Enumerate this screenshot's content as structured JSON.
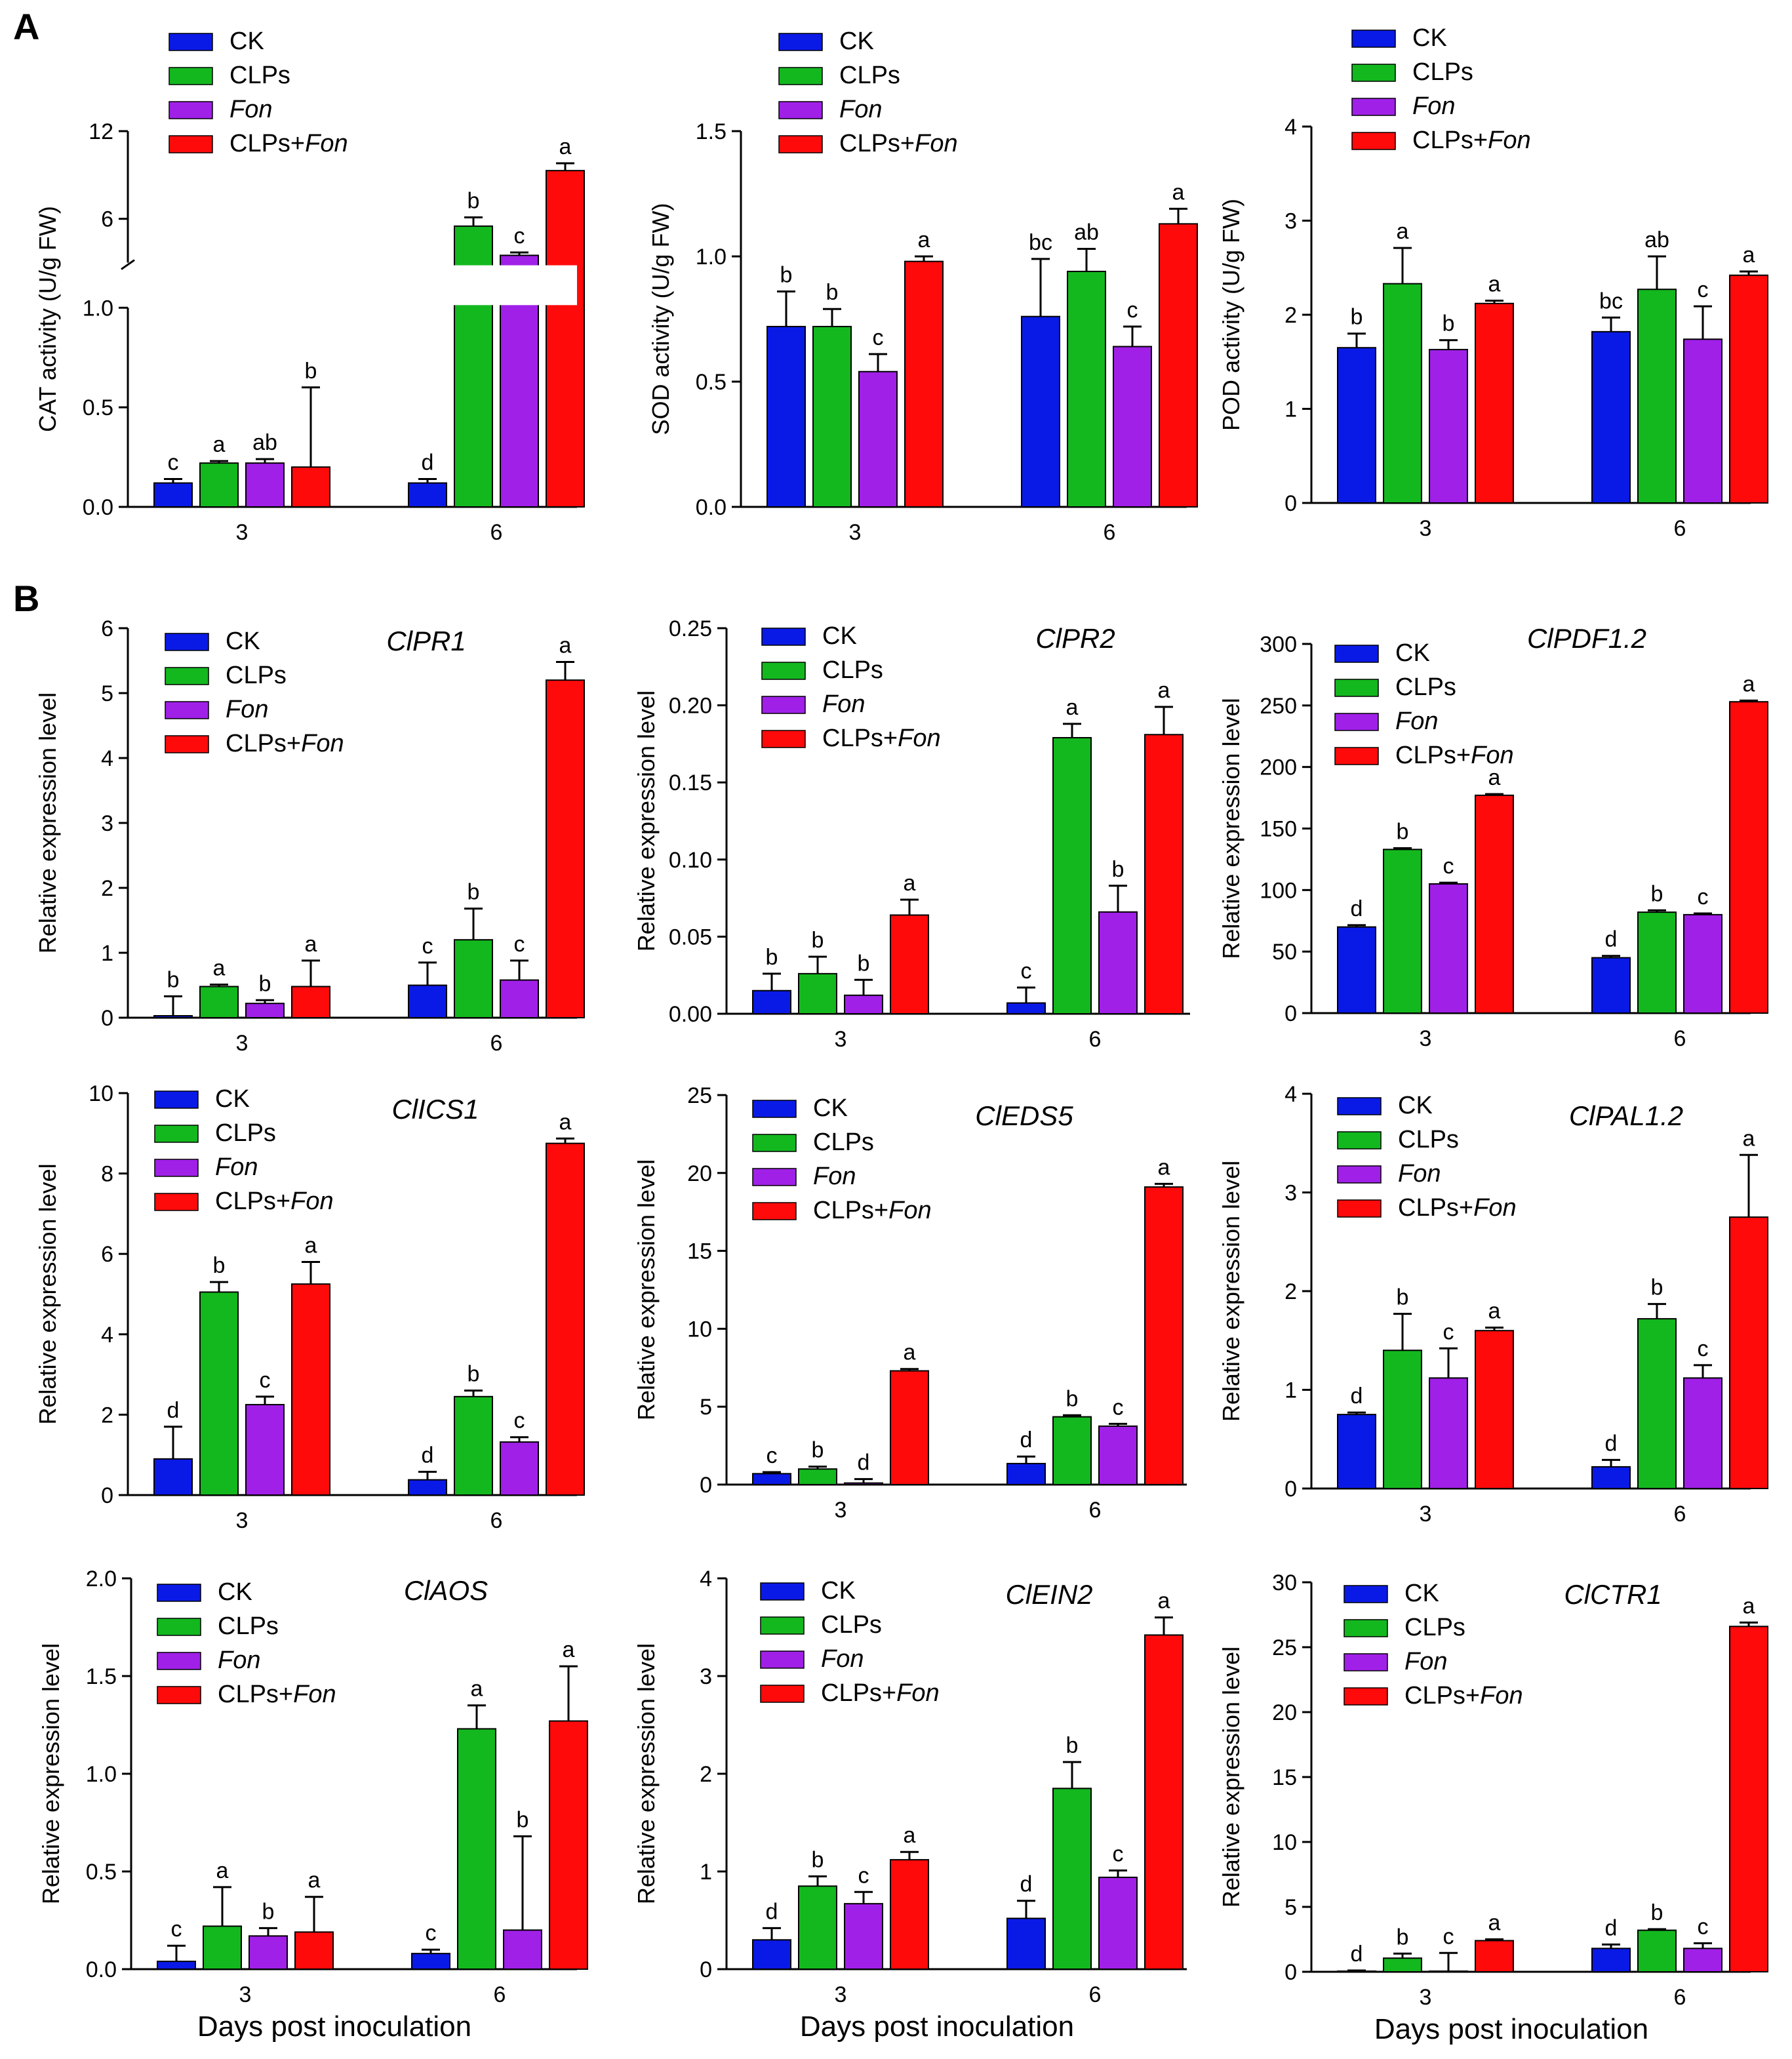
{
  "figure": {
    "panel_letters": [
      "A",
      "B"
    ],
    "legend_labels": [
      "CK",
      "CLPs",
      "Fon",
      "CLPs+Fon"
    ],
    "legend_italic": [
      false,
      false,
      true,
      false
    ],
    "legend_fon_part": "Fon",
    "xlabel_bottom": "Days post inoculation",
    "colors": {
      "CK": "#0a1ae6",
      "CLPs": "#13b81e",
      "Fon": "#a020e8",
      "CLPs+Fon": "#ff0a0a"
    }
  },
  "chart_data": [
    {
      "id": "cat",
      "type": "bar",
      "title": "",
      "ylabel": "CAT activity (U/g FW)",
      "xlabel": "",
      "categories": [
        "3",
        "6"
      ],
      "series_names": [
        "CK",
        "CLPs",
        "Fon",
        "CLPs+Fon"
      ],
      "broken_axis": {
        "lower_range": [
          0,
          1.0
        ],
        "upper_range": [
          3,
          12
        ]
      },
      "ytick_labels": [
        "0.0",
        "0.5",
        "1.0",
        "6",
        "12"
      ],
      "ytick_values": [
        0,
        0.5,
        1.0,
        6,
        12
      ],
      "values": [
        [
          0.12,
          0.22,
          0.22,
          0.2
        ],
        [
          0.12,
          5.5,
          3.5,
          9.3
        ]
      ],
      "errors": [
        [
          0.02,
          0.01,
          0.02,
          0.4
        ],
        [
          0.02,
          0.6,
          0.2,
          0.5
        ]
      ],
      "letters": [
        [
          "c",
          "a",
          "ab",
          "b"
        ],
        [
          "d",
          "b",
          "c",
          "a"
        ]
      ]
    },
    {
      "id": "sod",
      "type": "bar",
      "title": "",
      "ylabel": "SOD activity (U/g FW)",
      "xlabel": "",
      "categories": [
        "3",
        "6"
      ],
      "series_names": [
        "CK",
        "CLPs",
        "Fon",
        "CLPs+Fon"
      ],
      "ylim": [
        0,
        1.5
      ],
      "ytick_labels": [
        "0.0",
        "0.5",
        "1.0",
        "1.5"
      ],
      "ytick_values": [
        0,
        0.5,
        1.0,
        1.5
      ],
      "values": [
        [
          0.72,
          0.72,
          0.54,
          0.98
        ],
        [
          0.76,
          0.94,
          0.64,
          1.13
        ]
      ],
      "errors": [
        [
          0.14,
          0.07,
          0.07,
          0.02
        ],
        [
          0.23,
          0.09,
          0.08,
          0.06
        ]
      ],
      "letters": [
        [
          "b",
          "b",
          "c",
          "a"
        ],
        [
          "bc",
          "ab",
          "c",
          "a"
        ]
      ]
    },
    {
      "id": "pod",
      "type": "bar",
      "title": "",
      "ylabel": "POD activity (U/g FW)",
      "xlabel": "",
      "categories": [
        "3",
        "6"
      ],
      "series_names": [
        "CK",
        "CLPs",
        "Fon",
        "CLPs+Fon"
      ],
      "ylim": [
        0,
        4
      ],
      "ytick_labels": [
        "0",
        "1",
        "2",
        "3",
        "4"
      ],
      "ytick_values": [
        0,
        1,
        2,
        3,
        4
      ],
      "values": [
        [
          1.65,
          2.33,
          1.63,
          2.12
        ],
        [
          1.82,
          2.27,
          1.74,
          2.42
        ]
      ],
      "errors": [
        [
          0.15,
          0.38,
          0.1,
          0.03
        ],
        [
          0.15,
          0.35,
          0.35,
          0.04
        ]
      ],
      "letters": [
        [
          "b",
          "a",
          "b",
          "a"
        ],
        [
          "bc",
          "ab",
          "c",
          "a"
        ]
      ]
    },
    {
      "id": "clpr1",
      "type": "bar",
      "title": "ClPR1",
      "ylabel": "Relative expression level",
      "xlabel": "",
      "categories": [
        "3",
        "6"
      ],
      "series_names": [
        "CK",
        "CLPs",
        "Fon",
        "CLPs+Fon"
      ],
      "ylim": [
        0,
        6
      ],
      "ytick_labels": [
        "0",
        "1",
        "2",
        "3",
        "4",
        "5",
        "6"
      ],
      "ytick_values": [
        0,
        1,
        2,
        3,
        4,
        5,
        6
      ],
      "values": [
        [
          0.03,
          0.48,
          0.22,
          0.48
        ],
        [
          0.5,
          1.2,
          0.58,
          5.2
        ]
      ],
      "errors": [
        [
          0.3,
          0.03,
          0.05,
          0.4
        ],
        [
          0.35,
          0.48,
          0.3,
          0.28
        ]
      ],
      "letters": [
        [
          "b",
          "a",
          "b",
          "a"
        ],
        [
          "c",
          "b",
          "c",
          "a"
        ]
      ]
    },
    {
      "id": "clpr2",
      "type": "bar",
      "title": "ClPR2",
      "ylabel": "Relative expression level",
      "xlabel": "",
      "categories": [
        "3",
        "6"
      ],
      "series_names": [
        "CK",
        "CLPs",
        "Fon",
        "CLPs+Fon"
      ],
      "ylim": [
        0,
        0.25
      ],
      "ytick_labels": [
        "0.00",
        "0.05",
        "0.10",
        "0.15",
        "0.20",
        "0.25"
      ],
      "ytick_values": [
        0,
        0.05,
        0.1,
        0.15,
        0.2,
        0.25
      ],
      "values": [
        [
          0.015,
          0.026,
          0.012,
          0.064
        ],
        [
          0.007,
          0.179,
          0.066,
          0.181
        ]
      ],
      "errors": [
        [
          0.011,
          0.011,
          0.01,
          0.01
        ],
        [
          0.01,
          0.009,
          0.017,
          0.018
        ]
      ],
      "letters": [
        [
          "b",
          "b",
          "b",
          "a"
        ],
        [
          "c",
          "a",
          "b",
          "a"
        ]
      ]
    },
    {
      "id": "clpdf",
      "type": "bar",
      "title": "ClPDF1.2",
      "ylabel": "Relative expression level",
      "xlabel": "",
      "categories": [
        "3",
        "6"
      ],
      "series_names": [
        "CK",
        "CLPs",
        "Fon",
        "CLPs+Fon"
      ],
      "ylim": [
        0,
        300
      ],
      "ytick_labels": [
        "0",
        "50",
        "100",
        "150",
        "200",
        "250",
        "300"
      ],
      "ytick_values": [
        0,
        50,
        100,
        150,
        200,
        250,
        300
      ],
      "values": [
        [
          70,
          133,
          105,
          177
        ],
        [
          45,
          82,
          80,
          253
        ]
      ],
      "errors": [
        [
          1.5,
          1,
          1,
          1
        ],
        [
          1.5,
          1.5,
          1,
          1
        ]
      ],
      "letters": [
        [
          "d",
          "b",
          "c",
          "a"
        ],
        [
          "d",
          "b",
          "c",
          "a"
        ]
      ]
    },
    {
      "id": "clics1",
      "type": "bar",
      "title": "ClICS1",
      "ylabel": "Relative expression level",
      "xlabel": "",
      "categories": [
        "3",
        "6"
      ],
      "series_names": [
        "CK",
        "CLPs",
        "Fon",
        "CLPs+Fon"
      ],
      "ylim": [
        0,
        10
      ],
      "ytick_labels": [
        "0",
        "2",
        "4",
        "6",
        "8",
        "10"
      ],
      "ytick_values": [
        0,
        2,
        4,
        6,
        8,
        10
      ],
      "values": [
        [
          0.9,
          5.05,
          2.25,
          5.25
        ],
        [
          0.38,
          2.45,
          1.32,
          8.75
        ]
      ],
      "errors": [
        [
          0.8,
          0.25,
          0.2,
          0.55
        ],
        [
          0.2,
          0.15,
          0.12,
          0.12
        ]
      ],
      "letters": [
        [
          "d",
          "b",
          "c",
          "a"
        ],
        [
          "d",
          "b",
          "c",
          "a"
        ]
      ]
    },
    {
      "id": "cleds5",
      "type": "bar",
      "title": "ClEDS5",
      "ylabel": "Relative expression level",
      "xlabel": "",
      "categories": [
        "3",
        "6"
      ],
      "series_names": [
        "CK",
        "CLPs",
        "Fon",
        "CLPs+Fon"
      ],
      "ylim": [
        0,
        25
      ],
      "ytick_labels": [
        "0",
        "5",
        "10",
        "15",
        "20",
        "25"
      ],
      "ytick_values": [
        0,
        5,
        10,
        15,
        20,
        25
      ],
      "values": [
        [
          0.7,
          1.0,
          0.1,
          7.3
        ],
        [
          1.35,
          4.35,
          3.75,
          19.1
        ]
      ],
      "errors": [
        [
          0.1,
          0.15,
          0.25,
          0.12
        ],
        [
          0.45,
          0.1,
          0.15,
          0.2
        ]
      ],
      "letters": [
        [
          "c",
          "b",
          "d",
          "a"
        ],
        [
          "d",
          "b",
          "c",
          "a"
        ]
      ]
    },
    {
      "id": "clpal",
      "type": "bar",
      "title": "ClPAL1.2",
      "ylabel": "Relative expression level",
      "xlabel": "",
      "categories": [
        "3",
        "6"
      ],
      "series_names": [
        "CK",
        "CLPs",
        "Fon",
        "CLPs+Fon"
      ],
      "ylim": [
        0,
        4
      ],
      "ytick_labels": [
        "0",
        "1",
        "2",
        "3",
        "4"
      ],
      "ytick_values": [
        0,
        1,
        2,
        3,
        4
      ],
      "values": [
        [
          0.75,
          1.4,
          1.12,
          1.6
        ],
        [
          0.22,
          1.72,
          1.12,
          2.75
        ]
      ],
      "errors": [
        [
          0.02,
          0.37,
          0.3,
          0.03
        ],
        [
          0.07,
          0.15,
          0.13,
          0.63
        ]
      ],
      "letters": [
        [
          "d",
          "b",
          "c",
          "a"
        ],
        [
          "d",
          "b",
          "c",
          "a"
        ]
      ]
    },
    {
      "id": "claos",
      "type": "bar",
      "title": "ClAOS",
      "ylabel": "Relative expression level",
      "xlabel": "Days post inoculation",
      "categories": [
        "3",
        "6"
      ],
      "series_names": [
        "CK",
        "CLPs",
        "Fon",
        "CLPs+Fon"
      ],
      "ylim": [
        0,
        2.0
      ],
      "ytick_labels": [
        "0.0",
        "0.5",
        "1.0",
        "1.5",
        "2.0"
      ],
      "ytick_values": [
        0,
        0.5,
        1.0,
        1.5,
        2.0
      ],
      "values": [
        [
          0.04,
          0.22,
          0.17,
          0.19
        ],
        [
          0.08,
          1.23,
          0.2,
          1.27
        ]
      ],
      "errors": [
        [
          0.08,
          0.2,
          0.04,
          0.18
        ],
        [
          0.02,
          0.12,
          0.48,
          0.28
        ]
      ],
      "letters": [
        [
          "c",
          "a",
          "b",
          "a"
        ],
        [
          "c",
          "a",
          "b",
          "a"
        ]
      ]
    },
    {
      "id": "clein2",
      "type": "bar",
      "title": "ClEIN2",
      "ylabel": "Relative expression level",
      "xlabel": "Days post inoculation",
      "categories": [
        "3",
        "6"
      ],
      "series_names": [
        "CK",
        "CLPs",
        "Fon",
        "CLPs+Fon"
      ],
      "ylim": [
        0,
        4
      ],
      "ytick_labels": [
        "0",
        "1",
        "2",
        "3",
        "4"
      ],
      "ytick_values": [
        0,
        1,
        2,
        3,
        4
      ],
      "values": [
        [
          0.3,
          0.85,
          0.67,
          1.12
        ],
        [
          0.52,
          1.85,
          0.94,
          3.42
        ]
      ],
      "errors": [
        [
          0.12,
          0.1,
          0.12,
          0.08
        ],
        [
          0.18,
          0.27,
          0.07,
          0.18
        ]
      ],
      "letters": [
        [
          "d",
          "b",
          "c",
          "a"
        ],
        [
          "d",
          "b",
          "c",
          "a"
        ]
      ]
    },
    {
      "id": "clctr1",
      "type": "bar",
      "title": "ClCTR1",
      "ylabel": "Relative expression level",
      "xlabel": "Days post inoculation",
      "categories": [
        "3",
        "6"
      ],
      "series_names": [
        "CK",
        "CLPs",
        "Fon",
        "CLPs+Fon"
      ],
      "ylim": [
        0,
        30
      ],
      "ytick_labels": [
        "0",
        "5",
        "10",
        "15",
        "20",
        "25",
        "30"
      ],
      "ytick_values": [
        0,
        5,
        10,
        15,
        20,
        25,
        30
      ],
      "values": [
        [
          0.05,
          1.05,
          0.05,
          2.4
        ],
        [
          1.8,
          3.2,
          1.8,
          26.6
        ]
      ],
      "errors": [
        [
          0.05,
          0.35,
          1.4,
          0.1
        ],
        [
          0.3,
          0.08,
          0.4,
          0.3
        ]
      ],
      "letters": [
        [
          "d",
          "b",
          "c",
          "a"
        ],
        [
          "d",
          "b",
          "c",
          "a"
        ]
      ]
    }
  ]
}
